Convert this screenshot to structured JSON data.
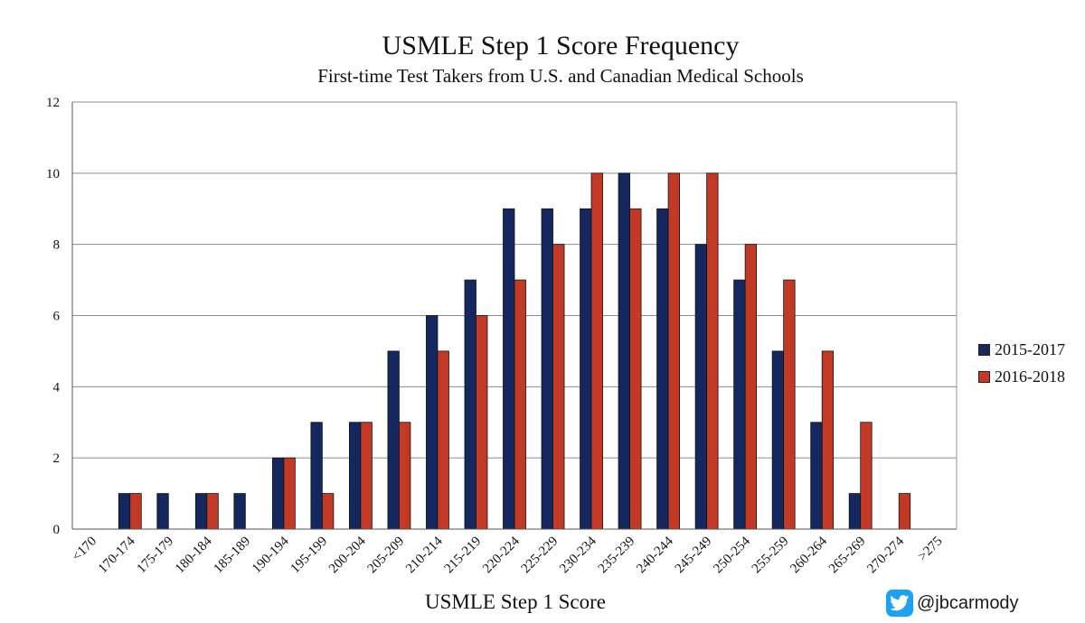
{
  "colors": {
    "series1": "#14275e",
    "series2": "#c23a26",
    "grid": "#8c8c8c",
    "badge": "#1da1f2"
  },
  "watermark": {
    "icon": "twitter-bird-icon",
    "handle": "@jbcarmody"
  },
  "chart_data": {
    "type": "bar",
    "title": "USMLE Step 1 Score Frequency",
    "subtitle": "First-time Test Takers from U.S. and Canadian Medical Schools",
    "xlabel": "USMLE Step 1 Score",
    "ylabel": "",
    "ylim": [
      0,
      12
    ],
    "yticks": [
      0,
      2,
      4,
      6,
      8,
      10,
      12
    ],
    "grid": true,
    "legend_position": "right",
    "categories": [
      "<170",
      "170-174",
      "175-179",
      "180-184",
      "185-189",
      "190-194",
      "195-199",
      "200-204",
      "205-209",
      "210-214",
      "215-219",
      "220-224",
      "225-229",
      "230-234",
      "235-239",
      "240-244",
      "245-249",
      "250-254",
      "255-259",
      "260-264",
      "265-269",
      "270-274",
      ">275"
    ],
    "series": [
      {
        "name": "2015-2017",
        "values": [
          0,
          1,
          1,
          1,
          1,
          2,
          3,
          3,
          5,
          6,
          7,
          9,
          9,
          9,
          10,
          9,
          8,
          7,
          5,
          3,
          1,
          0,
          0
        ]
      },
      {
        "name": "2016-2018",
        "values": [
          0,
          1,
          0,
          1,
          0,
          2,
          1,
          3,
          3,
          5,
          6,
          7,
          8,
          10,
          9,
          10,
          10,
          8,
          7,
          5,
          3,
          1,
          0
        ]
      }
    ]
  }
}
